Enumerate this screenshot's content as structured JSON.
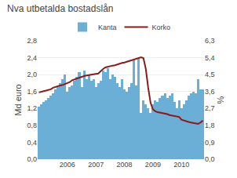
{
  "chart_data": {
    "type": "bar",
    "title": "Nva utbetalda bostadslån",
    "ylabel": "Md euro",
    "y2label": "%",
    "categories": [
      null,
      null,
      null,
      null,
      null,
      null,
      null,
      null,
      null,
      null,
      null,
      null,
      "2006",
      null,
      null,
      null,
      null,
      null,
      null,
      null,
      null,
      null,
      null,
      null,
      "2007",
      null,
      null,
      null,
      null,
      null,
      null,
      null,
      null,
      null,
      null,
      null,
      "2008",
      null,
      null,
      null,
      null,
      null,
      null,
      null,
      null,
      null,
      null,
      null,
      "2009",
      null,
      null,
      null,
      null,
      null,
      null,
      null,
      null,
      null,
      null,
      null,
      "2010",
      null,
      null,
      null,
      null,
      null,
      null,
      null,
      null,
      null
    ],
    "series": [
      {
        "name": "Kanta",
        "type": "bar",
        "color": "#6baed6",
        "values": [
          1.25,
          1.3,
          1.35,
          1.4,
          1.45,
          1.5,
          1.55,
          1.65,
          1.7,
          1.8,
          1.9,
          2.0,
          1.6,
          1.7,
          1.75,
          1.85,
          1.95,
          2.05,
          1.7,
          2.1,
          1.9,
          2.0,
          1.85,
          1.9,
          1.7,
          1.8,
          1.85,
          2.1,
          2.05,
          2.15,
          1.9,
          2.0,
          1.95,
          1.8,
          1.7,
          1.9,
          1.65,
          1.6,
          1.7,
          1.8,
          2.35,
          1.75,
          2.4,
          1.1,
          1.4,
          1.3,
          1.2,
          1.1,
          1.3,
          1.4,
          1.35,
          1.45,
          1.5,
          1.55,
          1.45,
          1.5,
          1.55,
          1.35,
          1.2,
          1.4,
          1.2,
          1.3,
          1.4,
          1.5,
          1.55,
          1.6,
          1.55,
          1.9,
          1.65,
          1.65
        ]
      },
      {
        "name": "Korko",
        "type": "line",
        "color": "#8b1a1a",
        "axis": "y2",
        "values": [
          3.55,
          3.6,
          3.62,
          3.65,
          3.67,
          3.72,
          3.8,
          3.85,
          3.88,
          3.92,
          3.95,
          4.0,
          4.05,
          4.1,
          4.2,
          4.25,
          4.3,
          4.35,
          4.4,
          4.42,
          4.45,
          4.48,
          4.5,
          4.52,
          4.54,
          4.56,
          4.7,
          4.8,
          4.88,
          4.92,
          4.95,
          4.98,
          5.0,
          5.05,
          5.1,
          5.12,
          5.14,
          5.18,
          5.22,
          5.26,
          5.3,
          5.35,
          5.4,
          5.42,
          5.38,
          4.8,
          3.8,
          3.0,
          2.65,
          2.55,
          2.5,
          2.48,
          2.45,
          2.42,
          2.4,
          2.35,
          2.32,
          2.3,
          2.28,
          2.25,
          2.1,
          2.05,
          2.0,
          1.98,
          1.95,
          1.93,
          1.9,
          1.88,
          1.95,
          2.05
        ]
      }
    ],
    "ylim": [
      0,
      2.8
    ],
    "yticks": [
      {
        "value": 0.0,
        "label": "0,0"
      },
      {
        "value": 0.4,
        "label": "0,4"
      },
      {
        "value": 0.8,
        "label": "0,8"
      },
      {
        "value": 1.2,
        "label": "1,2"
      },
      {
        "value": 1.6,
        "label": "1,6"
      },
      {
        "value": 2.0,
        "label": "2,0"
      },
      {
        "value": 2.4,
        "label": "2,4"
      },
      {
        "value": 2.8,
        "label": "2,8"
      }
    ],
    "y2lim": [
      0,
      6.3
    ],
    "y2ticks": [
      {
        "value": 0.0,
        "label": "0,0"
      },
      {
        "value": 0.9,
        "label": "0,9"
      },
      {
        "value": 1.8,
        "label": "1,8"
      },
      {
        "value": 2.7,
        "label": "2,7"
      },
      {
        "value": 3.6,
        "label": "3,6"
      },
      {
        "value": 4.5,
        "label": "4,5"
      },
      {
        "value": 5.4,
        "label": "5,4"
      },
      {
        "value": 6.3,
        "label": "6,3"
      }
    ],
    "grid": true,
    "legend": "top"
  }
}
